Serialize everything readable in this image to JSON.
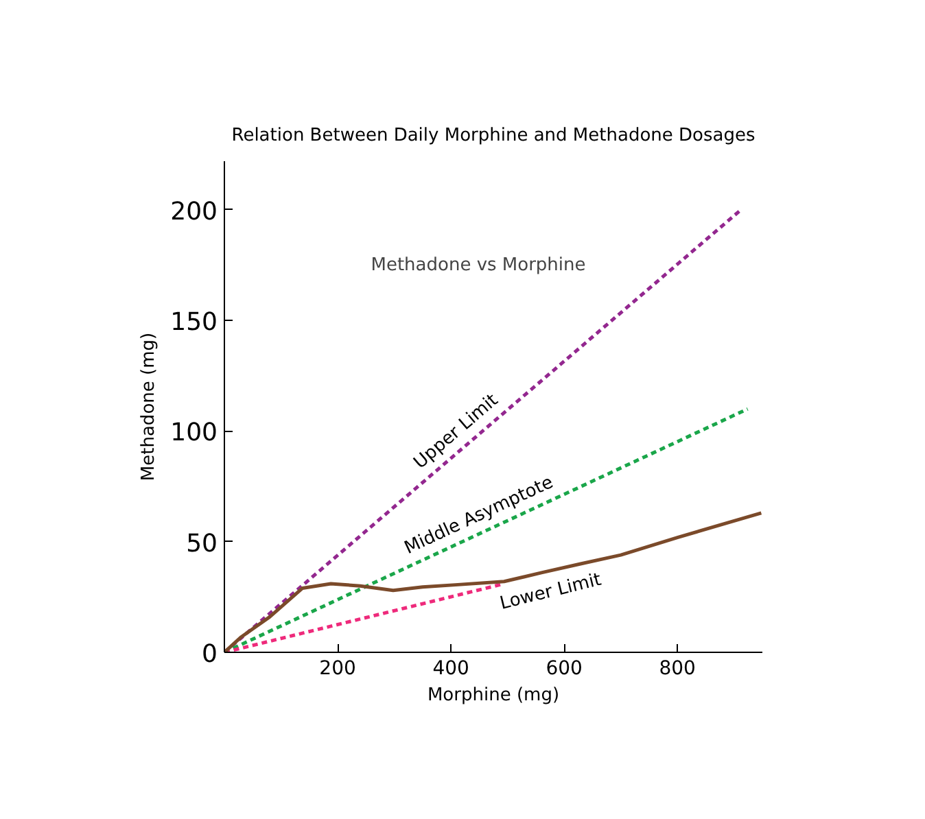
{
  "chart_data": {
    "type": "line",
    "title": "Relation Between Daily Morphine and Methadone Dosages",
    "xlabel": "Morphine (mg)",
    "ylabel": "Methadone (mg)",
    "annotations": [
      "Methadone vs Morphine"
    ],
    "xlim": [
      0,
      950
    ],
    "ylim": [
      0,
      222
    ],
    "xticks": [
      200,
      400,
      600,
      800
    ],
    "yticks": [
      0,
      50,
      100,
      150,
      200
    ],
    "grid": false,
    "marker": "none",
    "series": [
      {
        "name": "Upper Limit",
        "color": "#93278f",
        "x": [
          0,
          912
        ],
        "values": [
          0,
          200
        ],
        "line_style": "dashed"
      },
      {
        "name": "Middle Asymptote",
        "color": "#1aa64a",
        "x": [
          0,
          924
        ],
        "values": [
          0,
          110
        ],
        "line_style": "dashed"
      },
      {
        "name": "Lower Limit",
        "color": "#ee2a7b",
        "x": [
          0,
          494
        ],
        "values": [
          0,
          31
        ],
        "line_style": "dashed"
      },
      {
        "color": "#7b4a2a",
        "x": [
          0,
          30,
          80,
          138,
          188,
          240,
          298,
          350,
          408,
          494,
          560,
          629,
          700,
          801,
          948
        ],
        "values": [
          0,
          7,
          16,
          29,
          31,
          30,
          28,
          29.5,
          30.5,
          32,
          36,
          40,
          44,
          52,
          63
        ],
        "line_style": "solid"
      }
    ]
  }
}
